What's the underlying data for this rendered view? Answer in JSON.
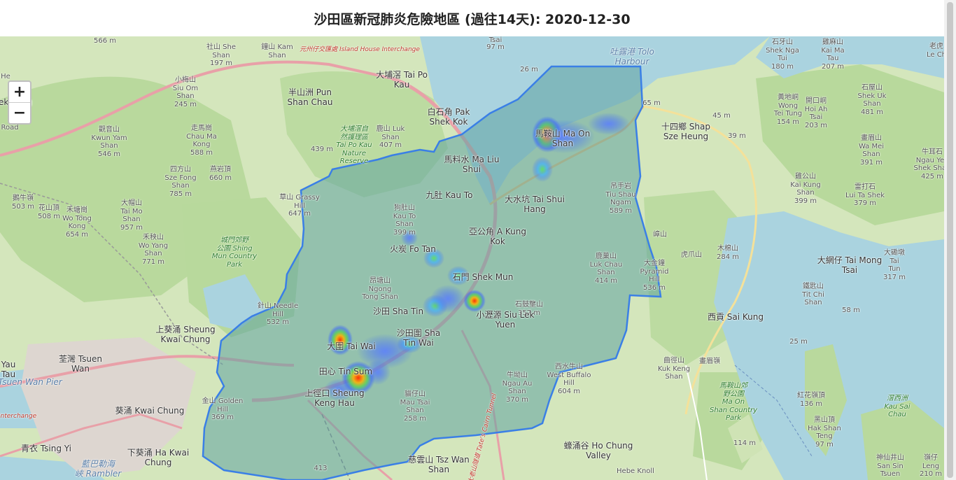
{
  "title": "沙田區新冠肺炎危險地區 (過往14天): 2020-12-30",
  "zoom": {
    "in_label": "+",
    "out_label": "−"
  },
  "colors": {
    "boundary": "#3a7fe6",
    "district_fill": "#5fa3a1",
    "water": "#a9d3df",
    "land": "#cfe3b5",
    "park": "#b7d89b",
    "road_major": "#e8a0a8"
  },
  "map_labels": [
    {
      "id": "wu-kau-tang",
      "text": "566 m"
    },
    {
      "id": "tsai",
      "text": "Tsai"
    },
    {
      "id": "tsai-97",
      "text": "97 m"
    },
    {
      "id": "sha-lo-tung",
      "text": "社山 She\nShan\n197 m"
    },
    {
      "id": "chung-sam",
      "text": "鐘山 Kam\nShan"
    },
    {
      "id": "interchange-top",
      "text": "元州仔交匯處 Island House Interchange"
    },
    {
      "id": "tai-po-kau",
      "text": "大埔滘 Tai Po\nKau"
    },
    {
      "id": "m26",
      "text": "26 m"
    },
    {
      "id": "tolo-harbour",
      "text": "吐露港 Tolo\nHarbour"
    },
    {
      "id": "shek-nga",
      "text": "石牙山\nShek Nga\nTui\n180 m"
    },
    {
      "id": "kai-ma",
      "text": "雞麻山\nKai Ma\nTau\n207 m"
    },
    {
      "id": "siu-om",
      "text": "小梅山\nSiu Om\nShan\n245 m"
    },
    {
      "id": "pun-shan-chau",
      "text": "半山洲 Pun\nShan Chau"
    },
    {
      "id": "pak-shek-kok",
      "text": "白石角 Pak\nShek Kok"
    },
    {
      "id": "m65",
      "text": "65 m"
    },
    {
      "id": "wong-tei-tung",
      "text": "黃地峒\nWong\nTei Tung\n154 m"
    },
    {
      "id": "hoi-ah",
      "text": "開口峒\nHoi Ah\nTsai\n203 m"
    },
    {
      "id": "shek-uk",
      "text": "石屋山\nShek Uk\nShan\n481 m"
    },
    {
      "id": "lek-kong",
      "text": "ek Kong"
    },
    {
      "id": "kwun-yam",
      "text": "觀音山\nKwun Yam\nShan\n546 m"
    },
    {
      "id": "chau-ma",
      "text": "走馬崗\nChau Ma\nKong\n588 m"
    },
    {
      "id": "tai-po-kau-nature",
      "text": "大埔滘自\n然護理區\nTai Po Kau\nNature\nReserve"
    },
    {
      "id": "luk-shan",
      "text": "鹿山 Luk\nShan\n407 m"
    },
    {
      "id": "m439",
      "text": "439 m"
    },
    {
      "id": "ma-liu-shui",
      "text": "馬料水 Ma Liu\nShui"
    },
    {
      "id": "ma-on-shan",
      "text": "馬鞍山 Ma On\nShan"
    },
    {
      "id": "shap-sze-heung",
      "text": "十四鄉 Shap\nSze Heung"
    },
    {
      "id": "m45",
      "text": "45 m"
    },
    {
      "id": "m39",
      "text": "39 m"
    },
    {
      "id": "wa-mei",
      "text": "畫眉山\nWa Mei\nShan\n391 m"
    },
    {
      "id": "ngau-yee",
      "text": "牛耳石\nNgau Yee\nShek Shan\n425 m"
    },
    {
      "id": "sze-fong",
      "text": "四方山\nSze Fong\nShan\n785 m"
    },
    {
      "id": "yin-ngam",
      "text": "燕岩頂\n660 m"
    },
    {
      "id": "kau-to",
      "text": "九肚 Kau To"
    },
    {
      "id": "tai-shui-hang",
      "text": "大水坑 Tai Shui\nHang"
    },
    {
      "id": "tiu-shau",
      "text": "吊手岩\nTiu Shau\nNgam\n589 m"
    },
    {
      "id": "kai-kung",
      "text": "雞公山\nKai Kung\nShan\n399 m"
    },
    {
      "id": "lui-ta-shek",
      "text": "雷打石\nLui Ta Shek\n379 m"
    },
    {
      "id": "ngau-ngak",
      "text": "鵝牛嶺\n503 m"
    },
    {
      "id": "fa-lap",
      "text": "花山頂\n508 m"
    },
    {
      "id": "wo-tong-kong",
      "text": "禾塘崗\nWo Tong\nKong\n654 m"
    },
    {
      "id": "tai-mo",
      "text": "大帽山\nTai Mo\nShan\n957 m"
    },
    {
      "id": "wo-yang",
      "text": "禾秧山\nWo Yang\nShan\n771 m"
    },
    {
      "id": "grassy-hill",
      "text": "草山 Grassy\nHill\n647 m"
    },
    {
      "id": "kau-to-shan",
      "text": "狗肚山\nKau To\nShan\n399 m"
    },
    {
      "id": "a-kung-kok",
      "text": "亞公角 A Kung\nKok"
    },
    {
      "id": "shing-mun",
      "text": "城門郊野\n公園 Shing\nMun Country\nPark"
    },
    {
      "id": "fo-tan",
      "text": "火炭 Fo Tan"
    },
    {
      "id": "shek-mun",
      "text": "石門 Shek Mun"
    },
    {
      "id": "luk-chau",
      "text": "鹿巢山\nLuk Chau\nShan\n414 m"
    },
    {
      "id": "pyramid",
      "text": "大金鐘\nPyramid\nHill\n536 m"
    },
    {
      "id": "mui-shan",
      "text": "嶂山"
    },
    {
      "id": "tsung-tsai",
      "text": "虎爪山"
    },
    {
      "id": "muk-min",
      "text": "木棉山\n284 m"
    },
    {
      "id": "tai-mong-tsai",
      "text": "大網仔 Tai Mong\nTsai"
    },
    {
      "id": "tai-ngam-tun",
      "text": "大磡墩\nTai\nTun\n317 m"
    },
    {
      "id": "ngong-tong",
      "text": "昂塘山\nNgong\nTong Shan"
    },
    {
      "id": "shek-ku-shan",
      "text": "石鼓壟山\n357 m"
    },
    {
      "id": "tit-chi",
      "text": "鐵匙山\nTit Chi\nShan"
    },
    {
      "id": "m58",
      "text": "58 m"
    },
    {
      "id": "needle-hill",
      "text": "針山 Needle\nHill\n532 m"
    },
    {
      "id": "sha-tin",
      "text": "沙田 Sha Tin"
    },
    {
      "id": "siu-lek-yuen",
      "text": "小瀝源 Siu Lek\nYuen"
    },
    {
      "id": "kwai-chung-sheung",
      "text": "上葵涌 Sheung\nKwai Chung"
    },
    {
      "id": "sai-kung",
      "text": "西貢 Sai Kung"
    },
    {
      "id": "sha-tin-wai",
      "text": "沙田圍 Sha\nTin Wai"
    },
    {
      "id": "tai-wai",
      "text": "大圍 Tai Wai"
    },
    {
      "id": "m25",
      "text": "25 m"
    },
    {
      "id": "tsuen-wan",
      "text": "荃灣 Tsuen\nWan"
    },
    {
      "id": "tau",
      "text": "Yau\nTau"
    },
    {
      "id": "tsuen-wan-pier",
      "text": "Tsuen Wan Pier"
    },
    {
      "id": "tin-sum",
      "text": "田心 Tin Sum"
    },
    {
      "id": "sheung-keng-hau",
      "text": "上徑口 Sheung\nKeng Hau"
    },
    {
      "id": "west-buffalo",
      "text": "西水牛山\nWest Buffalo\nHill\n604 m"
    },
    {
      "id": "kuk-keng",
      "text": "曲徑山\nKuk Keng\nShan"
    },
    {
      "id": "wa-mei-ling",
      "text": "畫眉嶺"
    },
    {
      "id": "ma-on-shan-cp",
      "text": "馬鞍山郊\n野公園\nMa On\nShan Country\nPark"
    },
    {
      "id": "hung-mo-tin",
      "text": "紅花嶺頂\n136 m"
    },
    {
      "id": "kau-sai-chau",
      "text": "滘西洲\nKau Sai\nChau"
    },
    {
      "id": "ngau-au",
      "text": "牛坳山\nNgau Au\nShan\n370 m"
    },
    {
      "id": "mau-tsai",
      "text": "貓仔山\nMau Tsai\nShan\n258 m"
    },
    {
      "id": "golden-hill",
      "text": "金山 Golden\nHill\n369 m"
    },
    {
      "id": "kwai-chung",
      "text": "葵涌 Kwai Chung"
    },
    {
      "id": "hak-shan-teng",
      "text": "黑山頂\nHak Shan\nTeng\n97 m"
    },
    {
      "id": "m114",
      "text": "114 m"
    },
    {
      "id": "interchange-left",
      "text": "Interchange"
    },
    {
      "id": "tsing-yi",
      "text": "青衣 Tsing Yi"
    },
    {
      "id": "ha-kwai-chung",
      "text": "下葵涌 Ha Kwai\nChung"
    },
    {
      "id": "lam-bin-hoi",
      "text": "藍巴勒海\n峽 Rambler"
    },
    {
      "id": "tsz-wan-shan",
      "text": "慈雲山 Tsz Wan\nShan"
    },
    {
      "id": "ho-chung",
      "text": "蠔涌谷 Ho Chung\nValley"
    },
    {
      "id": "m413",
      "text": "413"
    },
    {
      "id": "hebe-knoll",
      "text": "Hebe Knoll"
    },
    {
      "id": "san-sin-tsuen",
      "text": "神仙井山\nSan Sin\nTsuen"
    },
    {
      "id": "leng-tsai",
      "text": "嶺仔\nLeng\n210 m"
    },
    {
      "id": "tate-cairn",
      "text": "大老山隧道 Tate's Cairn Tunnel"
    },
    {
      "id": "mui-sun",
      "text": "Road"
    },
    {
      "id": "loc-ho",
      "text": "He"
    },
    {
      "id": "le-chi",
      "text": "老虎\nLe Ch"
    }
  ],
  "heat_spots": [
    {
      "id": "ma-on-shan-hot",
      "intensity": 0.6
    },
    {
      "id": "ma-on-shan-2",
      "intensity": 0.4
    },
    {
      "id": "ma-on-shan-3",
      "intensity": 0.3
    },
    {
      "id": "kau-to-hot",
      "intensity": 0.3
    },
    {
      "id": "fo-tan-hot",
      "intensity": 0.5
    },
    {
      "id": "shek-mun-hot",
      "intensity": 0.4
    },
    {
      "id": "sha-tin-hot",
      "intensity": 0.6
    },
    {
      "id": "siu-lek-hot",
      "intensity": 0.7
    },
    {
      "id": "sha-tin-wai-hot",
      "intensity": 0.6
    },
    {
      "id": "tai-wai-hot",
      "intensity": 0.8
    },
    {
      "id": "tin-sum-hot",
      "intensity": 1.0
    },
    {
      "id": "keng-hau-hot",
      "intensity": 0.5
    }
  ]
}
